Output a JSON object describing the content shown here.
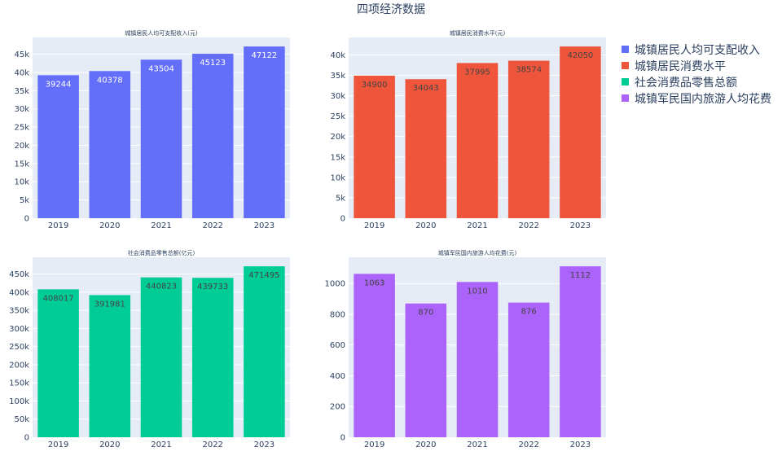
{
  "title": "四项经济数据",
  "legend": {
    "placement": "right",
    "items": [
      {
        "label": "城镇居民人均可支配收入",
        "color": "#636efa"
      },
      {
        "label": "城镇居民消费水平",
        "color": "#ef553b"
      },
      {
        "label": "社会消费品零售总额",
        "color": "#00cc96"
      },
      {
        "label": "城镇军民国内旅游人均花费",
        "color": "#ab63fa"
      }
    ]
  },
  "chart_data": [
    {
      "type": "bar",
      "title": "城镇居民人均可支配收入(元)",
      "categories": [
        "2019",
        "2020",
        "2021",
        "2022",
        "2023"
      ],
      "values": [
        39244,
        40378,
        43504,
        45123,
        47122
      ],
      "value_labels": [
        "39244",
        "40378",
        "43504",
        "45123",
        "47122"
      ],
      "ylim": [
        0,
        49600
      ],
      "yticks": [
        0,
        5000,
        10000,
        15000,
        20000,
        25000,
        30000,
        35000,
        40000,
        45000
      ],
      "ytick_labels": [
        "0",
        "5k",
        "10k",
        "15k",
        "20k",
        "25k",
        "30k",
        "35k",
        "40k",
        "45k"
      ],
      "color": "#636efa",
      "label_color": "#ffffff",
      "grid": true
    },
    {
      "type": "bar",
      "title": "城镇居民消费水平(元)",
      "categories": [
        "2019",
        "2020",
        "2021",
        "2022",
        "2023"
      ],
      "values": [
        34900,
        34043,
        37995,
        38574,
        42050
      ],
      "value_labels": [
        "34900",
        "34043",
        "37995",
        "38574",
        "42050"
      ],
      "ylim": [
        0,
        44260
      ],
      "yticks": [
        0,
        5000,
        10000,
        15000,
        20000,
        25000,
        30000,
        35000,
        40000
      ],
      "ytick_labels": [
        "0",
        "5k",
        "10k",
        "15k",
        "20k",
        "25k",
        "30k",
        "35k",
        "40k"
      ],
      "color": "#ef553b",
      "label_color": "#444444",
      "grid": true
    },
    {
      "type": "bar",
      "title": "社会消费品零售总额(亿元)",
      "categories": [
        "2019",
        "2020",
        "2021",
        "2022",
        "2023"
      ],
      "values": [
        408017,
        391981,
        440823,
        439733,
        471495
      ],
      "value_labels": [
        "408017",
        "391981",
        "440823",
        "439733",
        "471495"
      ],
      "ylim": [
        0,
        496310
      ],
      "yticks": [
        0,
        50000,
        100000,
        150000,
        200000,
        250000,
        300000,
        350000,
        400000,
        450000
      ],
      "ytick_labels": [
        "0",
        "50k",
        "100k",
        "150k",
        "200k",
        "250k",
        "300k",
        "350k",
        "400k",
        "450k"
      ],
      "color": "#00cc96",
      "label_color": "#444444",
      "grid": true
    },
    {
      "type": "bar",
      "title": "城镇军民国内旅游人均花费(元)",
      "categories": [
        "2019",
        "2020",
        "2021",
        "2022",
        "2023"
      ],
      "values": [
        1063,
        870,
        1010,
        876,
        1112
      ],
      "value_labels": [
        "1063",
        "870",
        "1010",
        "876",
        "1112"
      ],
      "ylim": [
        0,
        1170.5
      ],
      "yticks": [
        0,
        200,
        400,
        600,
        800,
        1000
      ],
      "ytick_labels": [
        "0",
        "200",
        "400",
        "600",
        "800",
        "1000"
      ],
      "color": "#ab63fa",
      "label_color": "#444444",
      "grid": true
    }
  ]
}
